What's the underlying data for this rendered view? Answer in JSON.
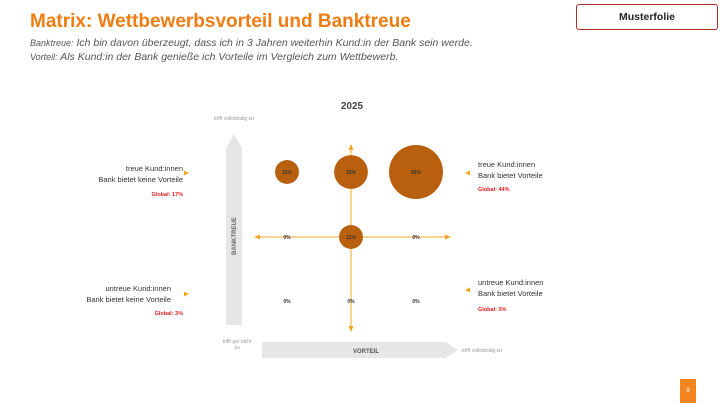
{
  "header": {
    "title": "Matrix: Wettbewerbsvorteil und Banktreue",
    "subtitle1_key": "Banktreue:",
    "subtitle1_text": "Ich bin davon überzeugt, dass ich in 3 Jahren weiterhin Kund:in der Bank sein werde.",
    "subtitle2_key": "Vorteil:",
    "subtitle2_text": "Als Kund:in der Bank genieße ich Vorteile im Vergleich zum Wettbewerb.",
    "badge": "Musterfolie"
  },
  "axes": {
    "y_label": "BANKTREUE",
    "y_top": "trifft vollständig zu",
    "y_bottom": "trifft gar nicht zu",
    "x_label": "VORTEIL",
    "x_right": "trifft vollständig zu"
  },
  "quadrants": {
    "top_left": {
      "line1": "treue Kund:innen",
      "line2": "Bank bietet keine Vorteile",
      "global": "Global: 17%"
    },
    "top_right": {
      "line1": "treue Kund:innen",
      "line2": "Bank bietet Vorteile",
      "global": "Global: 44%"
    },
    "bottom_left": {
      "line1": "untreue Kund:innen",
      "line2": "Bank bietet keine Vorteile",
      "global": "Global: 3%"
    },
    "bottom_right": {
      "line1": "untreue Kund:innen",
      "line2": "Bank bietet Vorteile",
      "global": "Global: 0%"
    }
  },
  "chart_data": {
    "type": "scatter",
    "title": "2025",
    "xlabel": "VORTEIL",
    "ylabel": "BANKTREUE",
    "x_levels": [
      1,
      2,
      3
    ],
    "y_levels": [
      1,
      2,
      3
    ],
    "points": [
      {
        "x": 1,
        "y": 3,
        "value": 11,
        "label": "11%"
      },
      {
        "x": 2,
        "y": 3,
        "value": 22,
        "label": "22%"
      },
      {
        "x": 3,
        "y": 3,
        "value": 56,
        "label": "56%"
      },
      {
        "x": 1,
        "y": 2,
        "value": 0,
        "label": "0%"
      },
      {
        "x": 2,
        "y": 2,
        "value": 11,
        "label": "11%"
      },
      {
        "x": 3,
        "y": 2,
        "value": 0,
        "label": "0%"
      },
      {
        "x": 1,
        "y": 1,
        "value": 0,
        "label": "0%"
      },
      {
        "x": 2,
        "y": 1,
        "value": 0,
        "label": "0%"
      },
      {
        "x": 3,
        "y": 1,
        "value": 0,
        "label": "0%"
      }
    ]
  },
  "colors": {
    "accent": "#f07c12",
    "bubble": "#b8600e",
    "arrow": "#f5a623",
    "global": "#e02020"
  },
  "footer": {
    "page": "9"
  }
}
